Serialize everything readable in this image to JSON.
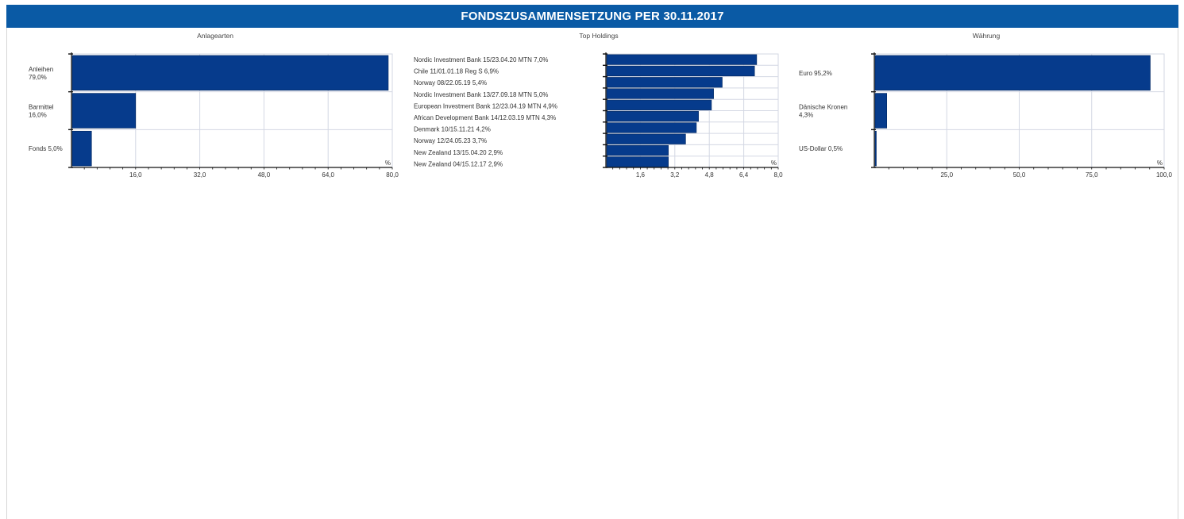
{
  "title": "FONDSZUSAMMENSETZUNG PER 30.11.2017",
  "colors": {
    "header": "#0a5aa5",
    "bar": "#063b8c",
    "grid": "#d3d7e3"
  },
  "chart_data": [
    {
      "type": "bar",
      "orientation": "horizontal",
      "title": "Anlagearten",
      "unit": "%",
      "categories": [
        [
          "Anleihen",
          "79,0%"
        ],
        [
          "Barmittel",
          "16,0%"
        ],
        [
          "Fonds 5,0%"
        ]
      ],
      "values": [
        79.0,
        16.0,
        5.0
      ],
      "xlim": [
        0,
        80
      ],
      "ticks": [
        16.0,
        32.0,
        48.0,
        64.0,
        80.0
      ],
      "tick_labels": [
        "16,0",
        "32,0",
        "48,0",
        "64,0",
        "80,0"
      ],
      "grid": true
    },
    {
      "type": "bar",
      "orientation": "horizontal",
      "title": "Top Holdings",
      "unit": "%",
      "categories": [
        [
          "Nordic Investment Bank 15/23.04.20 MTN 7,0%"
        ],
        [
          "Chile 11/01.01.18 Reg S 6,9%"
        ],
        [
          "Norway 08/22.05.19 5,4%"
        ],
        [
          "Nordic Investment Bank 13/27.09.18 MTN 5,0%"
        ],
        [
          "European Investment Bank 12/23.04.19 MTN 4,9%"
        ],
        [
          "African Development Bank 14/12.03.19 MTN 4,3%"
        ],
        [
          "Denmark 10/15.11.21 4,2%"
        ],
        [
          "Norway 12/24.05.23 3,7%"
        ],
        [
          "New Zealand 13/15.04.20 2,9%"
        ],
        [
          "New Zealand 04/15.12.17 2,9%"
        ]
      ],
      "values": [
        7.0,
        6.9,
        5.4,
        5.0,
        4.9,
        4.3,
        4.2,
        3.7,
        2.9,
        2.9
      ],
      "xlim": [
        0,
        8
      ],
      "ticks": [
        1.6,
        3.2,
        4.8,
        6.4,
        8.0
      ],
      "tick_labels": [
        "1,6",
        "3,2",
        "4,8",
        "6,4",
        "8,0"
      ],
      "grid": true
    },
    {
      "type": "bar",
      "orientation": "horizontal",
      "title": "Währung",
      "unit": "%",
      "categories": [
        [
          "Euro 95,2%"
        ],
        [
          "Dänische Kronen",
          "4,3%"
        ],
        [
          "US-Dollar 0,5%"
        ]
      ],
      "values": [
        95.2,
        4.3,
        0.5
      ],
      "xlim": [
        0,
        100
      ],
      "ticks": [
        25.0,
        50.0,
        75.0,
        100.0
      ],
      "tick_labels": [
        "25,0",
        "50,0",
        "75,0",
        "100,0"
      ],
      "grid": true
    }
  ]
}
